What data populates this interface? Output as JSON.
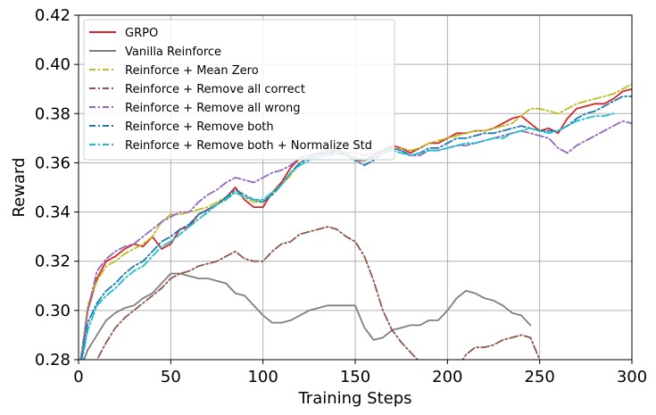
{
  "chart_data": {
    "type": "line",
    "xlabel": "Training Steps",
    "ylabel": "Reward",
    "xlim": [
      0,
      300
    ],
    "ylim": [
      0.28,
      0.42
    ],
    "xticks": [
      0,
      50,
      100,
      150,
      200,
      250,
      300
    ],
    "yticks": [
      0.28,
      0.3,
      0.32,
      0.34,
      0.36,
      0.38,
      0.4,
      0.42
    ],
    "xtick_labels": [
      "0",
      "50",
      "100",
      "150",
      "200",
      "250",
      "300"
    ],
    "ytick_labels": [
      "0.28",
      "0.30",
      "0.32",
      "0.34",
      "0.36",
      "0.38",
      "0.40",
      "0.42"
    ],
    "grid": true,
    "legend_position": "top-left",
    "series": [
      {
        "name": "GRPO",
        "color": "#d62728",
        "dash": "solid",
        "x": [
          0,
          5,
          10,
          15,
          20,
          25,
          30,
          35,
          40,
          45,
          50,
          55,
          60,
          65,
          70,
          75,
          80,
          85,
          90,
          95,
          100,
          105,
          110,
          115,
          120,
          125,
          130,
          135,
          140,
          145,
          150,
          155,
          160,
          165,
          170,
          175,
          180,
          185,
          190,
          195,
          200,
          205,
          210,
          215,
          220,
          225,
          230,
          235,
          240,
          245,
          250,
          255,
          260,
          265,
          270,
          275,
          280,
          285,
          290,
          295,
          300
        ],
        "y": [
          0.272,
          0.3,
          0.313,
          0.32,
          0.322,
          0.325,
          0.327,
          0.326,
          0.33,
          0.325,
          0.327,
          0.333,
          0.334,
          0.339,
          0.341,
          0.343,
          0.346,
          0.35,
          0.345,
          0.342,
          0.342,
          0.348,
          0.352,
          0.358,
          0.362,
          0.363,
          0.364,
          0.364,
          0.365,
          0.364,
          0.361,
          0.361,
          0.363,
          0.365,
          0.367,
          0.366,
          0.364,
          0.366,
          0.368,
          0.368,
          0.37,
          0.372,
          0.372,
          0.373,
          0.373,
          0.374,
          0.376,
          0.378,
          0.379,
          0.376,
          0.373,
          0.374,
          0.372,
          0.378,
          0.382,
          0.383,
          0.384,
          0.384,
          0.386,
          0.389,
          0.39
        ]
      },
      {
        "name": "Vanilla Reinforce",
        "color": "#7f7f7f",
        "dash": "solid",
        "x": [
          0,
          5,
          10,
          15,
          20,
          25,
          30,
          35,
          40,
          45,
          50,
          55,
          60,
          65,
          70,
          75,
          80,
          85,
          90,
          95,
          100,
          105,
          110,
          115,
          120,
          125,
          130,
          135,
          140,
          145,
          150,
          155,
          160,
          165,
          170,
          175,
          180,
          185,
          190,
          195,
          200,
          205,
          210,
          215,
          220,
          225,
          230,
          235,
          240,
          245
        ],
        "y": [
          0.274,
          0.284,
          0.29,
          0.296,
          0.299,
          0.301,
          0.302,
          0.305,
          0.307,
          0.311,
          0.315,
          0.315,
          0.314,
          0.313,
          0.313,
          0.312,
          0.311,
          0.307,
          0.306,
          0.302,
          0.298,
          0.295,
          0.295,
          0.296,
          0.298,
          0.3,
          0.301,
          0.302,
          0.302,
          0.302,
          0.302,
          0.293,
          0.288,
          0.289,
          0.292,
          0.293,
          0.294,
          0.294,
          0.296,
          0.296,
          0.3,
          0.305,
          0.308,
          0.307,
          0.305,
          0.304,
          0.302,
          0.299,
          0.298,
          0.294
        ]
      },
      {
        "name": "Reinforce + Mean Zero",
        "color": "#bcbd22",
        "dash": "dashdot",
        "x": [
          0,
          5,
          10,
          15,
          20,
          25,
          30,
          35,
          40,
          45,
          50,
          55,
          60,
          65,
          70,
          75,
          80,
          85,
          90,
          95,
          100,
          105,
          110,
          115,
          120,
          125,
          130,
          135,
          140,
          145,
          150,
          155,
          160,
          165,
          170,
          175,
          180,
          185,
          190,
          195,
          200,
          205,
          210,
          215,
          220,
          225,
          230,
          235,
          240,
          245,
          250,
          255,
          260,
          265,
          270,
          275,
          280,
          285,
          290,
          295,
          300
        ],
        "y": [
          0.272,
          0.302,
          0.312,
          0.318,
          0.32,
          0.323,
          0.325,
          0.327,
          0.33,
          0.336,
          0.339,
          0.339,
          0.34,
          0.341,
          0.342,
          0.344,
          0.346,
          0.348,
          0.346,
          0.344,
          0.344,
          0.348,
          0.351,
          0.355,
          0.36,
          0.362,
          0.363,
          0.364,
          0.364,
          0.363,
          0.362,
          0.361,
          0.362,
          0.364,
          0.365,
          0.366,
          0.365,
          0.366,
          0.368,
          0.369,
          0.37,
          0.371,
          0.372,
          0.373,
          0.373,
          0.374,
          0.375,
          0.376,
          0.379,
          0.382,
          0.382,
          0.381,
          0.38,
          0.382,
          0.384,
          0.385,
          0.386,
          0.387,
          0.388,
          0.39,
          0.392
        ]
      },
      {
        "name": "Reinforce + Remove all correct",
        "color": "#8c564b",
        "dash": "dashdot",
        "x": [
          0,
          5,
          10,
          15,
          20,
          25,
          30,
          35,
          40,
          45,
          50,
          55,
          60,
          65,
          70,
          75,
          80,
          85,
          90,
          95,
          100,
          105,
          110,
          115,
          120,
          125,
          130,
          135,
          140,
          145,
          150,
          155,
          160,
          165,
          170,
          175,
          180,
          185,
          190,
          195,
          200,
          205,
          210,
          215,
          220,
          225,
          230,
          235,
          240,
          245,
          250
        ],
        "y": [
          0.272,
          0.274,
          0.28,
          0.287,
          0.293,
          0.297,
          0.3,
          0.303,
          0.306,
          0.309,
          0.313,
          0.315,
          0.316,
          0.318,
          0.319,
          0.32,
          0.322,
          0.324,
          0.321,
          0.32,
          0.32,
          0.324,
          0.327,
          0.328,
          0.331,
          0.332,
          0.333,
          0.334,
          0.333,
          0.33,
          0.328,
          0.322,
          0.312,
          0.3,
          0.292,
          0.287,
          0.283,
          0.279,
          0.276,
          0.275,
          0.275,
          0.276,
          0.282,
          0.285,
          0.285,
          0.286,
          0.288,
          0.289,
          0.29,
          0.289,
          0.28
        ]
      },
      {
        "name": "Reinforce + Remove all wrong",
        "color": "#9467bd",
        "dash": "dashdot",
        "x": [
          0,
          5,
          10,
          15,
          20,
          25,
          30,
          35,
          40,
          45,
          50,
          55,
          60,
          65,
          70,
          75,
          80,
          85,
          90,
          95,
          100,
          105,
          110,
          115,
          120,
          125,
          130,
          135,
          140,
          145,
          150,
          155,
          160,
          165,
          170,
          175,
          180,
          185,
          190,
          195,
          200,
          205,
          210,
          215,
          220,
          225,
          230,
          235,
          240,
          245,
          250,
          255,
          260,
          265,
          270,
          275,
          280,
          285,
          290,
          295,
          300
        ],
        "y": [
          0.274,
          0.3,
          0.316,
          0.321,
          0.324,
          0.326,
          0.327,
          0.33,
          0.333,
          0.336,
          0.338,
          0.34,
          0.34,
          0.344,
          0.347,
          0.349,
          0.352,
          0.354,
          0.353,
          0.352,
          0.354,
          0.356,
          0.357,
          0.359,
          0.362,
          0.363,
          0.364,
          0.365,
          0.365,
          0.364,
          0.364,
          0.363,
          0.364,
          0.365,
          0.366,
          0.365,
          0.363,
          0.363,
          0.365,
          0.365,
          0.366,
          0.367,
          0.367,
          0.368,
          0.369,
          0.37,
          0.371,
          0.372,
          0.373,
          0.372,
          0.371,
          0.37,
          0.366,
          0.364,
          0.367,
          0.369,
          0.371,
          0.373,
          0.375,
          0.377,
          0.376
        ]
      },
      {
        "name": "Reinforce + Remove both",
        "color": "#1f77b4",
        "dash": "dashdot",
        "x": [
          0,
          5,
          10,
          15,
          20,
          25,
          30,
          35,
          40,
          45,
          50,
          55,
          60,
          65,
          70,
          75,
          80,
          85,
          90,
          95,
          100,
          105,
          110,
          115,
          120,
          125,
          130,
          135,
          140,
          145,
          150,
          155,
          160,
          165,
          170,
          175,
          180,
          185,
          190,
          195,
          200,
          205,
          210,
          215,
          220,
          225,
          230,
          235,
          240,
          245,
          250,
          255,
          260,
          265,
          270,
          275,
          280,
          285,
          290,
          295,
          300
        ],
        "y": [
          0.273,
          0.295,
          0.303,
          0.308,
          0.311,
          0.315,
          0.318,
          0.32,
          0.324,
          0.328,
          0.33,
          0.333,
          0.335,
          0.339,
          0.341,
          0.343,
          0.346,
          0.349,
          0.347,
          0.345,
          0.344,
          0.347,
          0.351,
          0.356,
          0.36,
          0.362,
          0.363,
          0.364,
          0.364,
          0.363,
          0.361,
          0.359,
          0.361,
          0.364,
          0.366,
          0.365,
          0.363,
          0.364,
          0.366,
          0.366,
          0.368,
          0.37,
          0.37,
          0.371,
          0.372,
          0.372,
          0.373,
          0.374,
          0.375,
          0.374,
          0.373,
          0.373,
          0.373,
          0.375,
          0.378,
          0.38,
          0.381,
          0.383,
          0.385,
          0.387,
          0.387
        ]
      },
      {
        "name": "Reinforce + Remove both + Normalize Std",
        "color": "#17becf",
        "dash": "dashdot",
        "x": [
          0,
          5,
          10,
          15,
          20,
          25,
          30,
          35,
          40,
          45,
          50,
          55,
          60,
          65,
          70,
          75,
          80,
          85,
          90,
          95,
          100,
          105,
          110,
          115,
          120,
          125,
          130,
          135,
          140,
          145,
          150,
          155,
          160,
          165,
          170,
          175,
          180,
          185,
          190,
          195,
          200,
          205,
          210,
          215,
          220,
          225,
          230,
          235,
          240,
          245,
          250,
          255,
          260,
          265,
          270,
          275,
          280,
          285,
          290
        ],
        "y": [
          0.272,
          0.292,
          0.302,
          0.306,
          0.309,
          0.313,
          0.316,
          0.318,
          0.322,
          0.326,
          0.328,
          0.331,
          0.334,
          0.337,
          0.34,
          0.343,
          0.345,
          0.348,
          0.346,
          0.345,
          0.345,
          0.348,
          0.351,
          0.356,
          0.359,
          0.361,
          0.362,
          0.363,
          0.364,
          0.364,
          0.362,
          0.361,
          0.362,
          0.364,
          0.365,
          0.364,
          0.363,
          0.364,
          0.365,
          0.365,
          0.366,
          0.367,
          0.368,
          0.368,
          0.369,
          0.37,
          0.37,
          0.372,
          0.373,
          0.374,
          0.373,
          0.372,
          0.373,
          0.375,
          0.377,
          0.378,
          0.379,
          0.379,
          0.38
        ]
      }
    ]
  }
}
